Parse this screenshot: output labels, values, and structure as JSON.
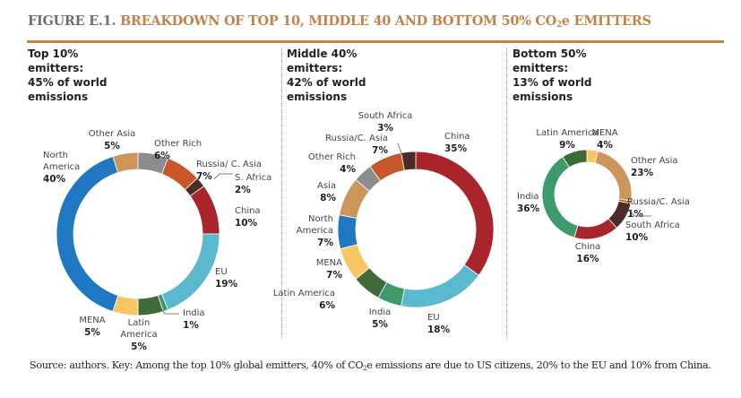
{
  "figure": {
    "number": "FIGURE E.1.",
    "title_pre": "BREAKDOWN OF TOP 10, MIDDLE 40 AND BOTTOM 50% CO",
    "title_sub": "2",
    "title_post": "e EMITTERS"
  },
  "source": {
    "pre": "Source: authors. Key: Among the top 10% global emitters, 40% of CO",
    "sub": "2",
    "post": "e emissions are due to US citizens, 20% to the EU and 10% from China."
  },
  "colors": {
    "North America": "#1f78c1",
    "Other Asia": "#cc955a",
    "Asia": "#cc955a",
    "Other Rich": "#8a8c8e",
    "Russia/ C. Asia": "#c8562b",
    "Russia/C. Asia": "#c8562b",
    "S. Africa": "#4b2c26",
    "South Africa": "#4b2c26",
    "China": "#a8262b",
    "EU": "#5ab8cf",
    "India": "#3f9a6b",
    "Latin America": "#3e6b39",
    "MENA": "#f8c764"
  },
  "chart_data": [
    {
      "type": "pie",
      "donut": true,
      "title": "Top 10% emitters: 45% of world emissions",
      "heading_lines": [
        "Top 10%",
        "emitters:",
        "45% of world",
        "emissions"
      ],
      "unit": "%",
      "slices": [
        {
          "label": "Other Rich",
          "value": 6
        },
        {
          "label": "Russia/ C. Asia",
          "value": 7
        },
        {
          "label": "S. Africa",
          "value": 2
        },
        {
          "label": "China",
          "value": 10
        },
        {
          "label": "EU",
          "value": 19
        },
        {
          "label": "India",
          "value": 1
        },
        {
          "label": "Latin America",
          "value": 5
        },
        {
          "label": "MENA",
          "value": 5
        },
        {
          "label": "North America",
          "value": 40
        },
        {
          "label": "Other Asia",
          "value": 5
        }
      ],
      "label_text": [
        {
          "label": "Other Rich",
          "lines": [
            "Other Rich"
          ],
          "value_text": "6%"
        },
        {
          "label": "Russia/ C. Asia",
          "lines": [
            "Russia/ C. Asia"
          ],
          "value_text": "7%"
        },
        {
          "label": "S. Africa",
          "lines": [
            "S. Africa"
          ],
          "value_text": "2%"
        },
        {
          "label": "China",
          "lines": [
            "China"
          ],
          "value_text": "10%"
        },
        {
          "label": "EU",
          "lines": [
            "EU"
          ],
          "value_text": "19%"
        },
        {
          "label": "India",
          "lines": [
            "India"
          ],
          "value_text": "1%"
        },
        {
          "label": "Latin America",
          "lines": [
            "Latin",
            "America"
          ],
          "value_text": "5%"
        },
        {
          "label": "MENA",
          "lines": [
            "MENA"
          ],
          "value_text": "5%"
        },
        {
          "label": "North America",
          "lines": [
            "North",
            "America"
          ],
          "value_text": "40%"
        },
        {
          "label": "Other Asia",
          "lines": [
            "Other Asia"
          ],
          "value_text": "5%"
        }
      ]
    },
    {
      "type": "pie",
      "donut": true,
      "title": "Middle 40% emitters: 42% of world emissions",
      "heading_lines": [
        "Middle 40%",
        "emitters:",
        "42% of world",
        "emissions"
      ],
      "unit": "%",
      "slices": [
        {
          "label": "China",
          "value": 35
        },
        {
          "label": "EU",
          "value": 18
        },
        {
          "label": "India",
          "value": 5
        },
        {
          "label": "Latin America",
          "value": 6
        },
        {
          "label": "MENA",
          "value": 7
        },
        {
          "label": "North America",
          "value": 7
        },
        {
          "label": "Asia",
          "value": 8
        },
        {
          "label": "Other Rich",
          "value": 4
        },
        {
          "label": "Russia/C. Asia",
          "value": 7
        },
        {
          "label": "South Africa",
          "value": 3
        }
      ],
      "label_text": [
        {
          "label": "China",
          "lines": [
            "China"
          ],
          "value_text": "35%"
        },
        {
          "label": "EU",
          "lines": [
            "EU"
          ],
          "value_text": "18%"
        },
        {
          "label": "India",
          "lines": [
            "India"
          ],
          "value_text": "5%"
        },
        {
          "label": "Latin America",
          "lines": [
            "Latin America"
          ],
          "value_text": "6%"
        },
        {
          "label": "MENA",
          "lines": [
            "MENA"
          ],
          "value_text": "7%"
        },
        {
          "label": "North America",
          "lines": [
            "North",
            "America"
          ],
          "value_text": "7%"
        },
        {
          "label": "Asia",
          "lines": [
            "Asia"
          ],
          "value_text": "8%"
        },
        {
          "label": "Other Rich",
          "lines": [
            "Other Rich"
          ],
          "value_text": "4%"
        },
        {
          "label": "Russia/C. Asia",
          "lines": [
            "Russia/C. Asia"
          ],
          "value_text": "7%"
        },
        {
          "label": "South Africa",
          "lines": [
            "South Africa"
          ],
          "value_text": "3%"
        }
      ]
    },
    {
      "type": "pie",
      "donut": true,
      "title": "Bottom 50% emitters: 13% of world emissions",
      "heading_lines": [
        "Bottom 50%",
        "emitters:",
        "13% of world",
        "emissions"
      ],
      "unit": "%",
      "slices": [
        {
          "label": "MENA",
          "value": 4
        },
        {
          "label": "Other Asia",
          "value": 23
        },
        {
          "label": "Russia/C. Asia",
          "value": 1
        },
        {
          "label": "South Africa",
          "value": 10
        },
        {
          "label": "China",
          "value": 16
        },
        {
          "label": "India",
          "value": 36
        },
        {
          "label": "Latin America",
          "value": 9
        }
      ],
      "label_text": [
        {
          "label": "MENA",
          "lines": [
            "MENA"
          ],
          "value_text": "4%"
        },
        {
          "label": "Other Asia",
          "lines": [
            "Other Asia"
          ],
          "value_text": "23%"
        },
        {
          "label": "Russia/C. Asia",
          "lines": [
            "Russia/C. Asia"
          ],
          "value_text": "1%"
        },
        {
          "label": "South Africa",
          "lines": [
            "South Africa"
          ],
          "value_text": "10%"
        },
        {
          "label": "China",
          "lines": [
            "China"
          ],
          "value_text": "16%"
        },
        {
          "label": "India",
          "lines": [
            "India"
          ],
          "value_text": "36%"
        },
        {
          "label": "Latin America",
          "lines": [
            "Latin America"
          ],
          "value_text": "9%"
        }
      ]
    }
  ]
}
